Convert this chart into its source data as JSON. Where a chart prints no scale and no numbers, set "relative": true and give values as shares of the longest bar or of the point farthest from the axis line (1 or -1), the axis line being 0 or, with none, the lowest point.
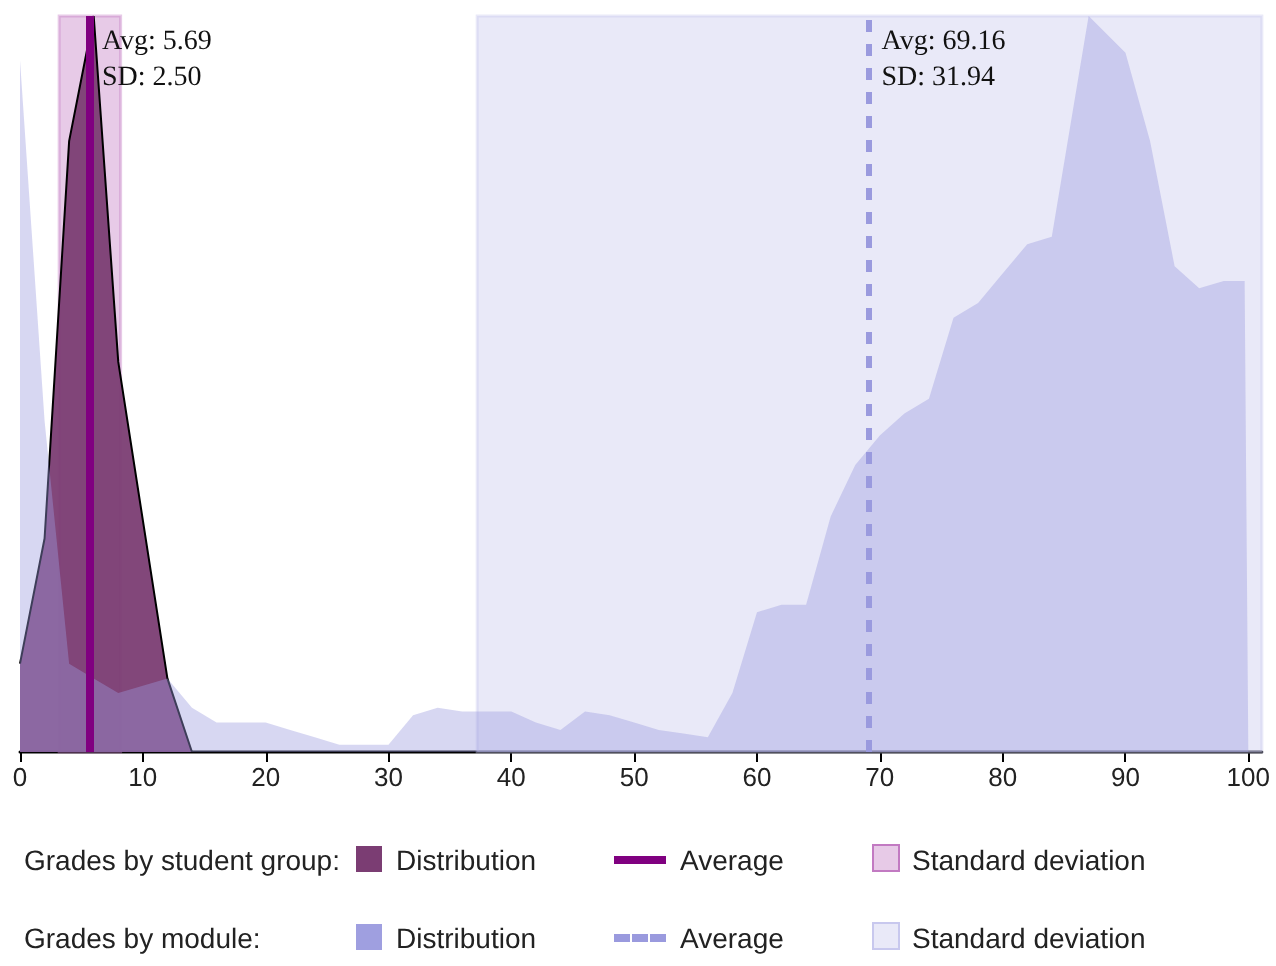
{
  "chart_data": {
    "type": "area",
    "relative": true,
    "series": [
      {
        "name": "Distribution",
        "color": "#7b3d73",
        "line_style": "solid",
        "x": [
          0,
          2,
          4,
          6,
          8,
          12,
          14
        ],
        "values": [
          0.12,
          0.29,
          0.83,
          1,
          0.53,
          0.1,
          0
        ]
      },
      {
        "name": "Distribution",
        "color": "#9a9ade",
        "x": [
          0,
          2,
          4,
          6,
          8,
          10,
          12,
          14,
          16,
          18,
          20,
          22,
          24,
          26,
          28,
          30,
          32,
          34,
          36,
          38,
          40,
          42,
          44,
          46,
          48,
          50,
          52,
          54,
          56,
          58,
          60,
          62,
          64,
          66,
          68,
          70,
          72,
          74,
          76,
          78,
          80,
          82,
          84,
          87,
          90,
          92,
          94,
          96,
          98,
          99.7,
          100
        ],
        "values": [
          0.94,
          0.45,
          0.12,
          0.1,
          0.08,
          0.09,
          0.1,
          0.06,
          0.04,
          0.04,
          0.04,
          0.03,
          0.02,
          0.01,
          0.01,
          0.01,
          0.05,
          0.06,
          0.055,
          0.055,
          0.055,
          0.04,
          0.03,
          0.055,
          0.05,
          0.04,
          0.03,
          0.025,
          0.02,
          0.08,
          0.19,
          0.2,
          0.2,
          0.32,
          0.39,
          0.43,
          0.46,
          0.48,
          0.59,
          0.61,
          0.65,
          0.69,
          0.7,
          1,
          0.95,
          0.83,
          0.66,
          0.63,
          0.64,
          0.64,
          0
        ]
      }
    ],
    "ref_lines": [
      {
        "axis": "x",
        "value": 5.69,
        "label": "Average",
        "color": "#800080",
        "line_style": "solid"
      },
      {
        "axis": "x",
        "value": 69.16,
        "label": "Average",
        "color": "#9a9ade",
        "line_style": "dashed"
      }
    ],
    "bands": [
      {
        "axis": "x",
        "from": 3.19,
        "to": 8.19,
        "label": "Standard deviation",
        "color": "#c27ac2"
      },
      {
        "axis": "x",
        "from": 37.22,
        "to": 101.1,
        "label": "Standard deviation",
        "color": "#c8c8ee"
      }
    ],
    "annotations": [
      "Grades by student group:",
      "Grades by module:",
      {
        "text": "Avg: 5.69\nSD: 2.50",
        "x": 5.69,
        "y": 1
      },
      {
        "text": "Avg: 69.16\nSD: 31.94",
        "x": 69.16,
        "y": 1
      }
    ],
    "xlim": [
      0,
      101.1
    ],
    "xticks": [
      0,
      10,
      20,
      30,
      40,
      50,
      60,
      70,
      80,
      90,
      100
    ],
    "grid": false,
    "legend": "bottom"
  }
}
